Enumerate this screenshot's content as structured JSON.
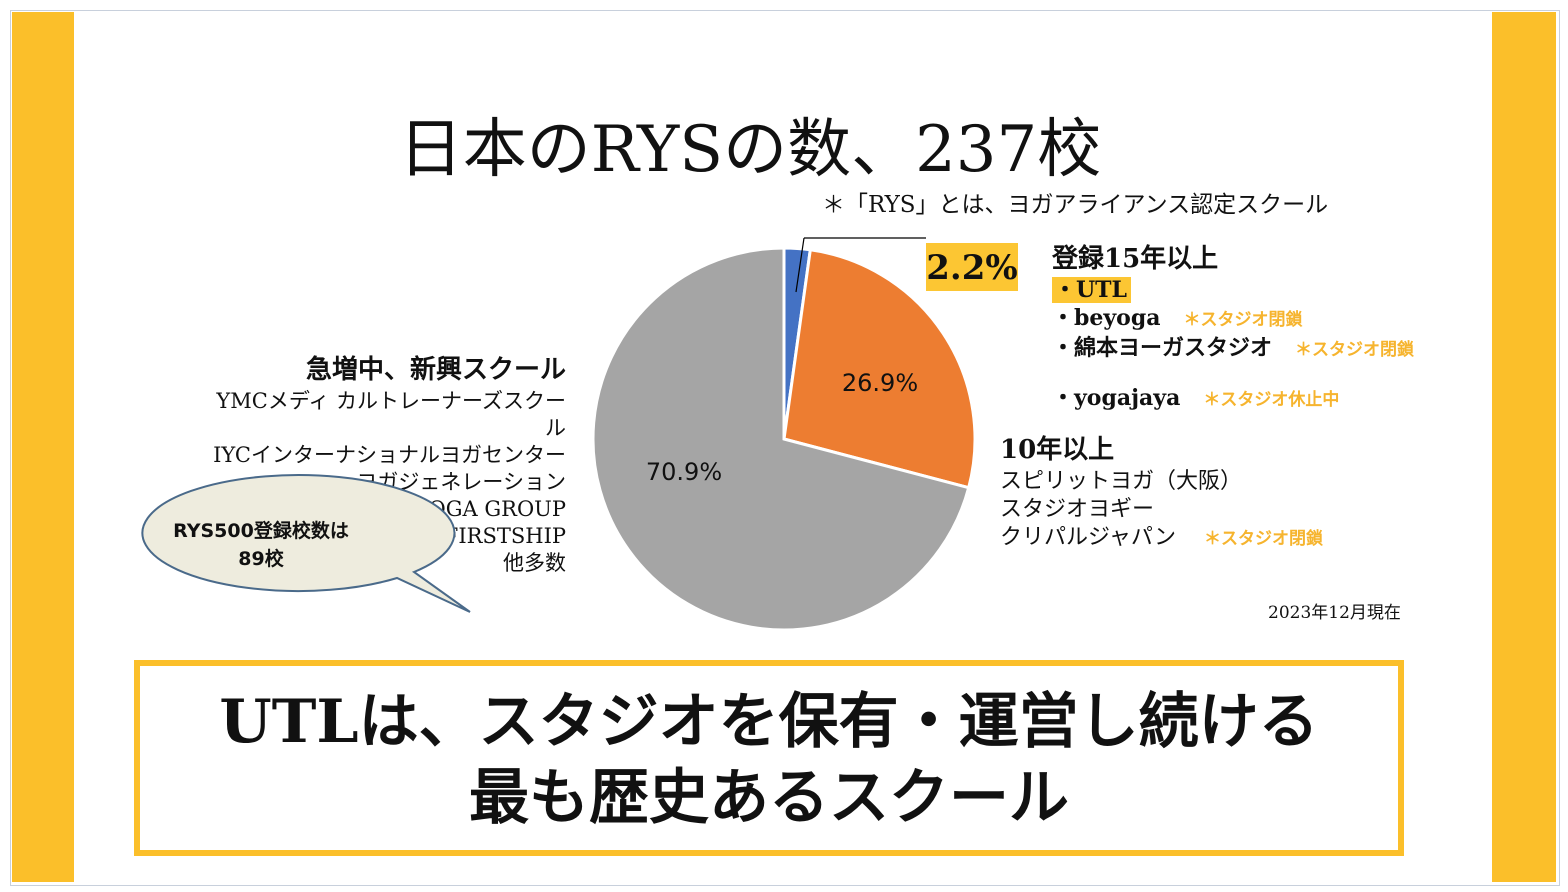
{
  "title": "日本のRYSの数、237校",
  "subtitle": "＊「RYS」とは、ヨガアライアンス認定スクール",
  "highlight_pct": "2.2%",
  "right_top": {
    "heading": "登録15年以上",
    "items": [
      {
        "name": "・UTL",
        "note": ""
      },
      {
        "name": "・beyoga",
        "note": "＊スタジオ閉鎖"
      },
      {
        "name": "・綿本ヨーガスタジオ",
        "note": "＊スタジオ閉鎖"
      },
      {
        "name": "・yogajaya",
        "note": "＊スタジオ休止中"
      }
    ]
  },
  "right_mid": {
    "heading": "10年以上",
    "items": [
      {
        "name": "スピリットヨガ（大阪）",
        "note": ""
      },
      {
        "name": "スタジオヨギー",
        "note": ""
      },
      {
        "name": "クリパルジャパン",
        "note": "＊スタジオ閉鎖"
      }
    ]
  },
  "left_block": {
    "heading": "急増中、新興スクール",
    "lines": [
      "YMCメディ カルトレーナーズスクー",
      "ル",
      "IYCインターナショナルヨガセンター",
      "ヨガジェネレーション",
      "OM YOGA GROUP",
      "FIRSTSHIP",
      "他多数"
    ]
  },
  "bubble": {
    "line1": "RYS500登録校数は",
    "line2": "89校"
  },
  "date_note": "2023年12月現在",
  "bottom": {
    "line1": "UTLは、スタジオを保有・運営し続ける",
    "line2": "最も歴史あるスクール"
  },
  "colors": {
    "accent": "#fbbf2a",
    "slice_blue": "#4472c4",
    "slice_orange": "#ed7d31",
    "slice_gray": "#a5a5a5",
    "note_orange": "#f6b42e"
  },
  "chart_data": {
    "type": "pie",
    "start_angle_deg": 0,
    "slices": [
      {
        "label": "2.2%",
        "value": 2.2,
        "color": "#4472c4"
      },
      {
        "label": "26.9%",
        "value": 26.9,
        "color": "#ed7d31"
      },
      {
        "label": "70.9%",
        "value": 70.9,
        "color": "#a5a5a5"
      }
    ]
  }
}
